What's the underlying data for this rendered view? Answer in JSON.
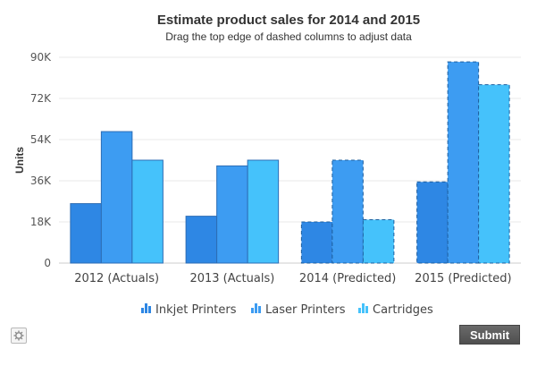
{
  "chart_data": {
    "type": "bar",
    "title": "Estimate product sales for 2014 and 2015",
    "subtitle": "Drag the top edge of dashed columns to adjust data",
    "ylabel": "Units",
    "xlabel": "",
    "ylim": [
      0,
      90000
    ],
    "yticks": [
      0,
      18000,
      36000,
      54000,
      72000,
      90000
    ],
    "ytick_labels": [
      "0",
      "18K",
      "36K",
      "54K",
      "72K",
      "90K"
    ],
    "categories": [
      "2012 (Actuals)",
      "2013 (Actuals)",
      "2014 (Predicted)",
      "2015 (Predicted)"
    ],
    "editable_categories": [
      false,
      false,
      true,
      true
    ],
    "series": [
      {
        "name": "Inkjet Printers",
        "color": "#2e87e4",
        "values": [
          26000,
          20500,
          18000,
          35500
        ]
      },
      {
        "name": "Laser Printers",
        "color": "#3d9cf2",
        "values": [
          57500,
          42500,
          45000,
          88000
        ]
      },
      {
        "name": "Cartridges",
        "color": "#45c2fb",
        "values": [
          45000,
          45000,
          19000,
          78000
        ]
      }
    ],
    "grid": true,
    "legend_position": "bottom"
  },
  "controls": {
    "submit_label": "Submit",
    "settings_icon": "gear-icon"
  }
}
